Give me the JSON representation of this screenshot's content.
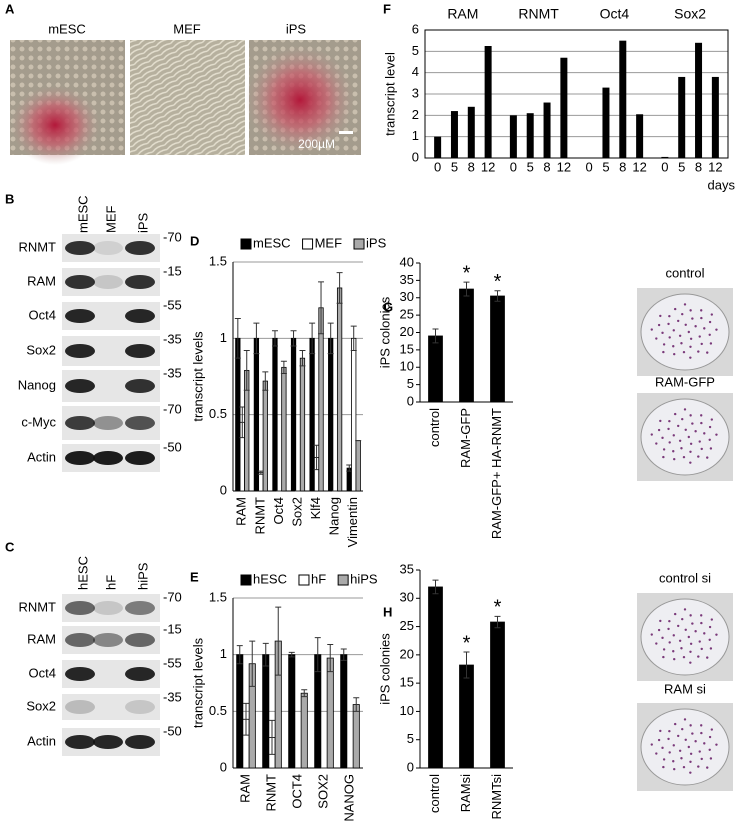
{
  "panels": [
    "A",
    "B",
    "C",
    "D",
    "E",
    "F",
    "G",
    "H"
  ],
  "panel_a": {
    "labels": [
      "mESC",
      "MEF",
      "iPS"
    ],
    "scale_bar": "200µM"
  },
  "panel_b": {
    "lanes": [
      "mESC",
      "MEF",
      "iPS"
    ],
    "rows": [
      {
        "label": "RNMT",
        "marker": "-70"
      },
      {
        "label": "RAM",
        "marker": "-15"
      },
      {
        "label": "Oct4",
        "marker": "-55"
      },
      {
        "label": "Sox2",
        "marker": "-35"
      },
      {
        "label": "Nanog",
        "marker": "-35"
      },
      {
        "label": "c-Myc",
        "marker": "-70"
      },
      {
        "label": "Actin",
        "marker": "-50"
      }
    ]
  },
  "panel_c": {
    "lanes": [
      "hESC",
      "hF",
      "hiPS"
    ],
    "rows": [
      {
        "label": "RNMT",
        "marker": "-70"
      },
      {
        "label": "RAM",
        "marker": "-15"
      },
      {
        "label": "Oct4",
        "marker": "-55"
      },
      {
        "label": "Sox2",
        "marker": "-35"
      },
      {
        "label": "Actin",
        "marker": "-50"
      }
    ]
  },
  "photos_g": [
    "control",
    "RAM-GFP"
  ],
  "photos_h": [
    "control si",
    "RAM si"
  ],
  "chart_data": [
    {
      "type": "bar",
      "ylabel": "transcript levels",
      "categories": [
        "RAM",
        "RNMT",
        "Oct4",
        "Sox2",
        "Klf4",
        "Nanog",
        "Vimentin"
      ],
      "series": [
        {
          "name": "mESC",
          "color": "#000000",
          "values": [
            1,
            1,
            1,
            1,
            1,
            1,
            0.15
          ],
          "errors": [
            0.13,
            0.1,
            0.05,
            0.05,
            0.1,
            0.1,
            0.02
          ]
        },
        {
          "name": "MEF",
          "color": "#ffffff",
          "values": [
            0.45,
            0.12,
            0,
            0,
            0.22,
            0,
            1
          ],
          "errors": [
            0.1,
            0.01,
            0,
            0,
            0.08,
            0,
            0.08
          ]
        },
        {
          "name": "iPS",
          "color": "#aaaaaa",
          "values": [
            0.79,
            0.72,
            0.81,
            0.87,
            1.2,
            1.33,
            0.33
          ],
          "errors": [
            0.13,
            0.06,
            0.04,
            0.05,
            0.17,
            0.1,
            0
          ]
        }
      ],
      "ylim": [
        0,
        1.5
      ],
      "yticks": [
        0,
        0.5,
        1,
        1.5
      ],
      "grid": true,
      "legend": "top"
    },
    {
      "type": "bar",
      "ylabel": "transcript levels",
      "categories": [
        "RAM",
        "RNMT",
        "OCT4",
        "SOX2",
        "NANOG"
      ],
      "series": [
        {
          "name": "hESC",
          "color": "#000000",
          "values": [
            1,
            1,
            1,
            1,
            1
          ],
          "errors": [
            0.08,
            0.1,
            0.02,
            0.15,
            0.05
          ]
        },
        {
          "name": "hF",
          "color": "#ffffff",
          "values": [
            0.43,
            0.27,
            0,
            0,
            0
          ],
          "errors": [
            0.14,
            0.15,
            0,
            0,
            0
          ]
        },
        {
          "name": "hiPS",
          "color": "#aaaaaa",
          "values": [
            0.92,
            1.12,
            0.66,
            0.97,
            0.56
          ],
          "errors": [
            0.2,
            0.3,
            0.03,
            0.12,
            0.06
          ]
        }
      ],
      "ylim": [
        0,
        1.5
      ],
      "yticks": [
        0,
        0.5,
        1,
        1.5
      ],
      "grid": true,
      "legend": "top"
    },
    {
      "type": "grouped",
      "ylabel": "transcript level",
      "xlabel": "days",
      "categories": [
        "0",
        "5",
        "8",
        "12"
      ],
      "series": [
        {
          "name": "RAM",
          "color": "#000000",
          "values": [
            1,
            2.2,
            2.4,
            5.25
          ]
        },
        {
          "name": "RNMT",
          "color": "#000000",
          "values": [
            2,
            2.1,
            2.6,
            4.7
          ]
        },
        {
          "name": "Oct4",
          "color": "#000000",
          "values": [
            0,
            3.3,
            5.5,
            2.05
          ]
        },
        {
          "name": "Sox2",
          "color": "#000000",
          "values": [
            0.05,
            3.8,
            5.4,
            3.8
          ]
        }
      ],
      "ylim": [
        0,
        6
      ],
      "yticks": [
        0,
        1,
        2,
        3,
        4,
        5,
        6
      ],
      "grid": true
    },
    {
      "type": "bar",
      "ylabel": "iPS colonies",
      "categories": [
        "control",
        "RAM-GFP",
        "RAM-GFP+ HA-RNMT"
      ],
      "series": [
        {
          "name": "iPS colonies",
          "color": "#000000",
          "values": [
            19,
            32.5,
            30.5
          ],
          "errors": [
            2,
            2,
            1.5
          ]
        }
      ],
      "significance": [
        null,
        "*",
        "*"
      ],
      "ylim": [
        0,
        40
      ],
      "yticks": [
        0,
        5,
        10,
        15,
        20,
        25,
        30,
        35,
        40
      ],
      "grid": false
    },
    {
      "type": "bar",
      "ylabel": "iPS colonies",
      "categories": [
        "control",
        "RAMsi",
        "RNMTsi"
      ],
      "series": [
        {
          "name": "iPS colonies",
          "color": "#000000",
          "values": [
            32,
            18.2,
            25.8
          ],
          "errors": [
            1.2,
            2.3,
            1
          ]
        }
      ],
      "significance": [
        null,
        "*",
        "*"
      ],
      "ylim": [
        0,
        35
      ],
      "yticks": [
        0,
        5,
        10,
        15,
        20,
        25,
        30,
        35
      ],
      "grid": false
    }
  ]
}
